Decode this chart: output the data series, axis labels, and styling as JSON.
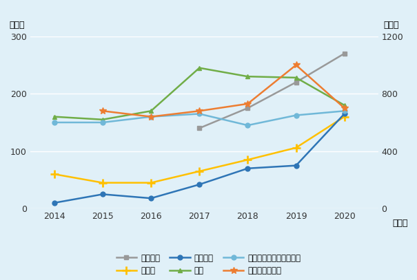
{
  "years": [
    2014,
    2015,
    2016,
    2017,
    2018,
    2019,
    2020
  ],
  "france_years": [
    2017,
    2018,
    2019,
    2020
  ],
  "france_vals": [
    140,
    175,
    220,
    270
  ],
  "germany_vals": [
    60,
    45,
    45,
    65,
    85,
    106,
    160
  ],
  "italy_vals": [
    10,
    25,
    18,
    42,
    70,
    75,
    165
  ],
  "usa_vals": [
    160,
    155,
    170,
    245,
    230,
    228,
    180
  ],
  "australia_vals": [
    600,
    600,
    640,
    660,
    580,
    650,
    680
  ],
  "canada_years": [
    2015,
    2016,
    2017,
    2018,
    2019,
    2020
  ],
  "canada_vals": [
    680,
    640,
    680,
    730,
    1000,
    700
  ],
  "background_color": "#e0f0f8",
  "ylabel_left": "（件）",
  "ylabel_right": "（件）",
  "xlabel": "（年）",
  "ylim_left": [
    0,
    300
  ],
  "ylim_right": [
    0,
    1200
  ],
  "yticks_left": [
    0,
    100,
    200,
    300
  ],
  "yticks_right": [
    0,
    400,
    800,
    1200
  ],
  "legend_labels": [
    "フランス",
    "ドイツ",
    "イタリア",
    "米国",
    "オーストラリア（右軸）",
    "カナダ（右軸）"
  ],
  "colors": {
    "france": "#999999",
    "germany": "#FFC000",
    "italy": "#2E75B6",
    "usa": "#70AD47",
    "australia": "#70B8D8",
    "canada": "#ED7D31"
  },
  "grid_color": "#d0e8f0",
  "tick_fontsize": 9,
  "legend_fontsize": 8.5
}
